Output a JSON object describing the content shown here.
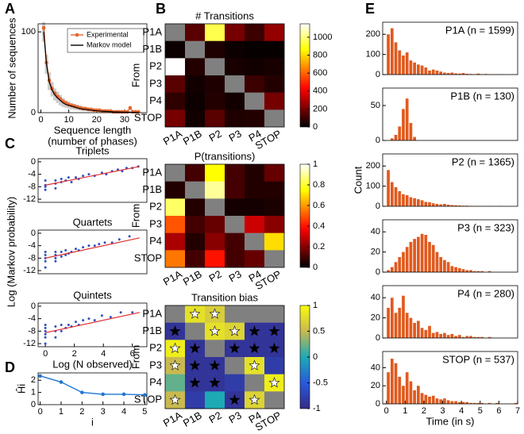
{
  "panel_labels": [
    "A",
    "B",
    "C",
    "D",
    "E"
  ],
  "chart_data": [
    {
      "type": "line",
      "xlabel": [
        "Sequence length",
        "(number of phases)"
      ],
      "ylabel": "Number of sequences",
      "xlim": [
        -1,
        38
      ],
      "ylim": [
        0,
        110
      ],
      "xticks": [
        0,
        10,
        20,
        30
      ],
      "yticks": [
        0,
        100
      ],
      "legend": "upper right",
      "x": [
        1,
        2,
        3,
        4,
        5,
        6,
        7,
        8,
        9,
        10,
        11,
        12,
        13,
        14,
        15,
        16,
        17,
        18,
        19,
        20,
        21,
        22,
        23,
        24,
        25,
        26,
        27,
        28,
        29,
        30,
        31,
        32,
        33,
        34,
        35
      ],
      "band": {
        "color": "#cccccc",
        "lower": [
          88,
          48,
          28,
          20,
          15,
          12,
          9,
          7,
          6,
          5,
          4,
          3.5,
          3,
          2.5,
          2,
          1.8,
          1.5,
          1.2,
          1,
          0.9,
          0.7,
          0.6,
          0.5,
          0.4,
          0.3,
          0.3,
          0.2,
          0.2,
          0.1,
          0.1,
          0.1,
          0.1,
          0,
          0,
          0
        ],
        "upper": [
          112,
          72,
          50,
          38,
          30,
          26,
          22,
          18,
          15,
          14,
          12,
          11,
          10,
          9,
          8,
          7,
          6.5,
          6,
          5.5,
          5,
          4.5,
          4,
          3.8,
          3.5,
          3.2,
          3,
          2.8,
          2.5,
          2.3,
          2,
          1.8,
          1.6,
          1.5,
          1.3,
          1.2
        ]
      },
      "series": [
        {
          "name": "Experimental",
          "color": "#e8642c",
          "markers": true,
          "values": [
            105,
            62,
            40,
            30,
            24,
            20,
            17,
            14,
            12,
            10,
            9,
            8,
            7,
            6,
            5,
            5,
            4,
            4,
            3,
            3,
            3,
            2,
            2,
            2,
            2,
            1,
            1,
            1,
            1,
            1,
            1,
            6,
            1,
            1,
            1
          ]
        },
        {
          "name": "Markov model",
          "color": "#000000",
          "values": [
            100,
            60,
            38,
            28,
            22,
            18,
            15,
            12,
            10,
            9,
            8,
            7,
            6,
            5,
            4.5,
            4,
            3.5,
            3,
            2.7,
            2.4,
            2,
            1.8,
            1.6,
            1.4,
            1.2,
            1,
            0.9,
            0.8,
            0.7,
            0.6,
            0.5,
            0.5,
            0.4,
            0.4,
            0.3
          ]
        }
      ]
    },
    {
      "type": "heatmap",
      "title": "# Transitions",
      "ylabel": "From",
      "colormap": "hot",
      "missing_color": "#808080",
      "rows": [
        "P1A",
        "P1B",
        "P2",
        "P3",
        "P4",
        "STOP"
      ],
      "columns": [
        "P1A",
        "P1B",
        "P2",
        "P3",
        "P4",
        "STOP"
      ],
      "clim": [
        0,
        1150
      ],
      "cticks": [
        0,
        200,
        400,
        600,
        800,
        1000
      ],
      "values": [
        [
          null,
          150,
          950,
          200,
          100,
          250
        ],
        [
          20,
          null,
          50,
          20,
          10,
          10
        ],
        [
          1150,
          60,
          null,
          40,
          30,
          40
        ],
        [
          150,
          30,
          50,
          null,
          100,
          60
        ],
        [
          80,
          20,
          60,
          30,
          null,
          200
        ],
        [
          200,
          30,
          150,
          50,
          60,
          null
        ]
      ]
    },
    {
      "type": "heatmap",
      "title": "P(transitions)",
      "ylabel": "From",
      "colormap": "hot",
      "missing_color": "#808080",
      "rows": [
        "P1A",
        "P1B",
        "P2",
        "P3",
        "P4",
        "STOP"
      ],
      "columns": [
        "P1A",
        "P1B",
        "P2",
        "P3",
        "P4",
        "STOP"
      ],
      "clim": [
        0,
        1
      ],
      "cticks": [
        0,
        0.2,
        0.4,
        0.6,
        0.8,
        1
      ],
      "values": [
        [
          null,
          0.1,
          0.75,
          0.1,
          0.05,
          0.15
        ],
        [
          0.05,
          null,
          0.9,
          0.1,
          0.05,
          0.05
        ],
        [
          0.85,
          0.05,
          null,
          0.03,
          0.03,
          0.04
        ],
        [
          0.5,
          0.1,
          0.15,
          null,
          0.3,
          0.2
        ],
        [
          0.25,
          0.05,
          0.2,
          0.1,
          null,
          0.7
        ],
        [
          0.55,
          0.1,
          0.4,
          0.1,
          0.15,
          null
        ]
      ]
    },
    {
      "type": "heatmap",
      "title": "Transition bias",
      "ylabel": "From",
      "colormap": "parula",
      "missing_color": "#808080",
      "rows": [
        "P1A",
        "P1B",
        "P2",
        "P3",
        "P4",
        "STOP"
      ],
      "columns": [
        "P1A",
        "P1B",
        "P2",
        "P3",
        "P4",
        "STOP"
      ],
      "clim": [
        -1,
        1
      ],
      "cticks": [
        -1,
        -0.5,
        0,
        0.5,
        1
      ],
      "values": [
        [
          null,
          0.8,
          0.65,
          null,
          null,
          null
        ],
        [
          -0.9,
          null,
          0.8,
          0.7,
          -0.9,
          -0.9
        ],
        [
          0.9,
          -0.9,
          null,
          -0.9,
          -0.9,
          -0.9
        ],
        [
          0.5,
          -0.9,
          -0.9,
          null,
          0.8,
          -0.8
        ],
        [
          0.2,
          -0.9,
          -0.9,
          -0.8,
          null,
          0.9
        ],
        [
          0.5,
          -0.8,
          0.0,
          -0.9,
          0.7,
          null
        ]
      ],
      "significant": [
        [
          false,
          true,
          true,
          false,
          false,
          false
        ],
        [
          true,
          false,
          true,
          true,
          true,
          true
        ],
        [
          true,
          true,
          false,
          true,
          true,
          true
        ],
        [
          true,
          true,
          true,
          false,
          true,
          false
        ],
        [
          false,
          true,
          true,
          false,
          false,
          true
        ],
        [
          true,
          false,
          false,
          true,
          true,
          false
        ]
      ]
    },
    {
      "type": "scatter",
      "title": "Triplets",
      "color": "#3050c0",
      "xlim": [
        -0.5,
        7
      ],
      "ylim": [
        -13,
        1
      ],
      "yticks": [
        -12,
        -8,
        -4,
        0
      ],
      "x": [
        0,
        0,
        0,
        0,
        0.7,
        0.7,
        0.7,
        1.1,
        1.1,
        1.4,
        1.6,
        1.8,
        2.1,
        2.3,
        2.6,
        3,
        3.4,
        3.9,
        4.2,
        4.6,
        5,
        5.3,
        5.6,
        6,
        6.4
      ],
      "y": [
        -9,
        -7.5,
        -6,
        -8,
        -7,
        -6,
        -8.5,
        -6.5,
        -5.5,
        -6,
        -5,
        -6.5,
        -5,
        -5.5,
        -4.5,
        -4,
        -4.5,
        -3.5,
        -4,
        -3,
        -2.5,
        -3,
        -2,
        -2,
        -1.5
      ],
      "fit": {
        "color": "#e03030",
        "x": [
          0,
          6.5
        ],
        "y": [
          -7.5,
          -1.5
        ]
      }
    },
    {
      "type": "scatter",
      "title": "Quartets",
      "ylabel": "Log (Markov probability)",
      "color": "#3050c0",
      "xlim": [
        -0.5,
        7
      ],
      "ylim": [
        -13,
        1
      ],
      "yticks": [
        -12,
        -8,
        -4,
        0
      ],
      "x": [
        0,
        0,
        0,
        0,
        0,
        0.7,
        0.7,
        0.7,
        0.7,
        1.1,
        1.1,
        1.4,
        1.4,
        1.6,
        1.8,
        2.1,
        2.3,
        2.6,
        3,
        3.4,
        3.7,
        4.1,
        4.6,
        5.1,
        5.8
      ],
      "y": [
        -11,
        -9,
        -8,
        -7,
        -6,
        -9,
        -8,
        -7,
        -6,
        -7.5,
        -6,
        -7,
        -5.5,
        -6.5,
        -6,
        -5,
        -5.5,
        -4.5,
        -4,
        -4,
        -3.5,
        -3,
        -3,
        -2,
        -1
      ],
      "fit": {
        "color": "#e03030",
        "x": [
          0,
          6.5
        ],
        "y": [
          -8,
          -1.5
        ]
      }
    },
    {
      "type": "scatter",
      "title": "Quintets",
      "xlabel": "Log (N observed)",
      "color": "#3050c0",
      "xlim": [
        -0.5,
        7
      ],
      "ylim": [
        -13,
        1
      ],
      "yticks": [
        -12,
        -8,
        -4,
        0
      ],
      "xticks": [
        0,
        2,
        4,
        6
      ],
      "x": [
        0,
        0,
        0,
        0,
        0,
        0,
        0.7,
        0.7,
        0.7,
        1.1,
        1.1,
        1.4,
        1.6,
        1.8,
        2.1,
        2.3,
        2.6,
        3,
        3.4,
        3.9,
        4.5,
        5.2,
        6
      ],
      "y": [
        -12,
        -10,
        -9,
        -8,
        -7,
        -6,
        -10,
        -8,
        -6.5,
        -8,
        -6,
        -7,
        -6,
        -6.5,
        -5,
        -6,
        -4.5,
        -4,
        -4.5,
        -3,
        -3.5,
        -2,
        -2
      ],
      "fit": {
        "color": "#e03030",
        "x": [
          0,
          6.5
        ],
        "y": [
          -8.5,
          -2
        ]
      }
    },
    {
      "type": "line",
      "xlabel": "i",
      "ylabel": "Ĥi",
      "xlim": [
        -0.1,
        5.1
      ],
      "ylim": [
        0,
        2.6
      ],
      "xticks": [
        0,
        1,
        2,
        3,
        4,
        5
      ],
      "yticks": [
        0,
        1,
        2
      ],
      "x": [
        0,
        1,
        2,
        3,
        4,
        5
      ],
      "series": [
        {
          "color": "#1f77d4",
          "markers": true,
          "values": [
            2.35,
            1.85,
            1.0,
            0.85,
            0.85,
            0.8
          ]
        }
      ]
    },
    {
      "type": "histogram",
      "title": "P1A (n = 1599)",
      "color": "#e05a1e",
      "xlim": [
        -0.2,
        7
      ],
      "ylim": [
        0,
        260
      ],
      "yticks": [
        0,
        100,
        200
      ],
      "bins": [
        0,
        0.2,
        0.4,
        0.6,
        0.8,
        1,
        1.2,
        1.4,
        1.6,
        1.8,
        2,
        2.2,
        2.4,
        2.6,
        2.8,
        3,
        3.2,
        3.4,
        3.6,
        3.8,
        4,
        4.2,
        4.4,
        4.6,
        4.8,
        5,
        5.2,
        5.4,
        5.6,
        5.8,
        6,
        6.2,
        6.4,
        6.6,
        6.8,
        7
      ],
      "counts": [
        200,
        230,
        160,
        120,
        95,
        110,
        70,
        60,
        50,
        45,
        35,
        20,
        25,
        20,
        15,
        10,
        8,
        10,
        6,
        5,
        8,
        4,
        3,
        2,
        5,
        2,
        3,
        2,
        1,
        1,
        2,
        1,
        0,
        1,
        1
      ]
    },
    {
      "type": "histogram",
      "title": "P1B (n = 130)",
      "color": "#e05a1e",
      "xlim": [
        -0.2,
        7
      ],
      "ylim": [
        0,
        75
      ],
      "yticks": [
        0,
        50
      ],
      "bins": [
        0,
        0.2,
        0.4,
        0.6,
        0.8,
        1,
        1.2,
        1.4,
        1.6,
        1.8,
        2,
        2.2,
        2.4,
        2.6,
        2.8,
        3,
        3.2,
        3.4,
        3.6,
        3.8,
        4,
        4.2,
        4.4,
        4.6,
        4.8,
        5,
        5.2,
        5.4,
        5.6,
        5.8,
        6,
        6.2,
        6.4,
        6.6,
        6.8,
        7
      ],
      "counts": [
        0,
        3,
        8,
        20,
        45,
        60,
        25,
        5,
        0,
        0,
        0,
        0,
        0,
        0,
        0,
        0,
        0,
        0,
        0,
        0,
        0,
        0,
        0,
        0,
        0,
        0,
        0,
        0,
        0,
        0,
        0,
        0,
        0,
        0,
        0
      ]
    },
    {
      "type": "histogram",
      "title": "P2 (n = 1365)",
      "ylabel": "Count",
      "color": "#e05a1e",
      "xlim": [
        -0.2,
        7
      ],
      "ylim": [
        0,
        260
      ],
      "yticks": [
        0,
        100,
        200
      ],
      "bins": [
        0,
        0.2,
        0.4,
        0.6,
        0.8,
        1,
        1.2,
        1.4,
        1.6,
        1.8,
        2,
        2.2,
        2.4,
        2.6,
        2.8,
        3,
        3.2,
        3.4,
        3.6,
        3.8,
        4,
        4.2,
        4.4,
        4.6,
        4.8,
        5,
        5.2,
        5.4,
        5.6,
        5.8,
        6,
        6.2,
        6.4,
        6.6,
        6.8,
        7
      ],
      "counts": [
        180,
        120,
        95,
        75,
        60,
        55,
        45,
        40,
        35,
        30,
        22,
        20,
        15,
        12,
        10,
        12,
        8,
        6,
        5,
        4,
        3,
        3,
        2,
        2,
        1,
        1,
        1,
        1,
        0,
        0,
        1,
        0,
        0,
        0,
        0
      ]
    },
    {
      "type": "histogram",
      "title": "P3 (n = 323)",
      "color": "#e05a1e",
      "xlim": [
        -0.2,
        7
      ],
      "ylim": [
        0,
        52
      ],
      "yticks": [
        0,
        20,
        40
      ],
      "bins": [
        0,
        0.2,
        0.4,
        0.6,
        0.8,
        1,
        1.2,
        1.4,
        1.6,
        1.8,
        2,
        2.2,
        2.4,
        2.6,
        2.8,
        3,
        3.2,
        3.4,
        3.6,
        3.8,
        4,
        4.2,
        4.4,
        4.6,
        4.8,
        5,
        5.2,
        5.4,
        5.6,
        5.8,
        6,
        6.2,
        6.4,
        6.6,
        6.8,
        7
      ],
      "counts": [
        2,
        5,
        10,
        15,
        20,
        25,
        30,
        33,
        35,
        38,
        37,
        30,
        27,
        20,
        15,
        12,
        10,
        6,
        5,
        4,
        3,
        2,
        2,
        1,
        1,
        1,
        0,
        1,
        0,
        0,
        0,
        0,
        0,
        0,
        0
      ]
    },
    {
      "type": "histogram",
      "title": "P4 (n = 280)",
      "color": "#e05a1e",
      "xlim": [
        -0.2,
        7
      ],
      "ylim": [
        0,
        52
      ],
      "yticks": [
        0,
        20,
        40
      ],
      "bins": [
        0,
        0.2,
        0.4,
        0.6,
        0.8,
        1,
        1.2,
        1.4,
        1.6,
        1.8,
        2,
        2.2,
        2.4,
        2.6,
        2.8,
        3,
        3.2,
        3.4,
        3.6,
        3.8,
        4,
        4.2,
        4.4,
        4.6,
        4.8,
        5,
        5.2,
        5.4,
        5.6,
        5.8,
        6,
        6.2,
        6.4,
        6.6,
        6.8,
        7
      ],
      "counts": [
        30,
        40,
        25,
        30,
        42,
        25,
        20,
        15,
        17,
        10,
        8,
        12,
        5,
        6,
        4,
        5,
        3,
        4,
        2,
        3,
        1,
        2,
        2,
        1,
        1,
        1,
        0,
        1,
        0,
        0,
        0,
        0,
        0,
        0,
        0
      ]
    },
    {
      "type": "histogram",
      "title": "STOP (n = 537)",
      "xlabel": "Time (in s)",
      "color": "#e05a1e",
      "xlim": [
        -0.2,
        7
      ],
      "ylim": [
        0,
        58
      ],
      "yticks": [
        0,
        20,
        40
      ],
      "xticks": [
        0,
        1,
        2,
        3,
        4,
        5,
        6,
        7
      ],
      "bins": [
        0,
        0.2,
        0.4,
        0.6,
        0.8,
        1,
        1.2,
        1.4,
        1.6,
        1.8,
        2,
        2.2,
        2.4,
        2.6,
        2.8,
        3,
        3.2,
        3.4,
        3.6,
        3.8,
        4,
        4.2,
        4.4,
        4.6,
        4.8,
        5,
        5.2,
        5.4,
        5.6,
        5.8,
        6,
        6.2,
        6.4,
        6.6,
        6.8,
        7
      ],
      "counts": [
        35,
        50,
        45,
        30,
        20,
        35,
        25,
        15,
        20,
        12,
        10,
        8,
        9,
        6,
        5,
        6,
        4,
        3,
        3,
        2,
        2,
        2,
        1,
        1,
        1,
        1,
        0,
        1,
        0,
        1,
        0,
        0,
        0,
        0,
        1
      ]
    }
  ]
}
